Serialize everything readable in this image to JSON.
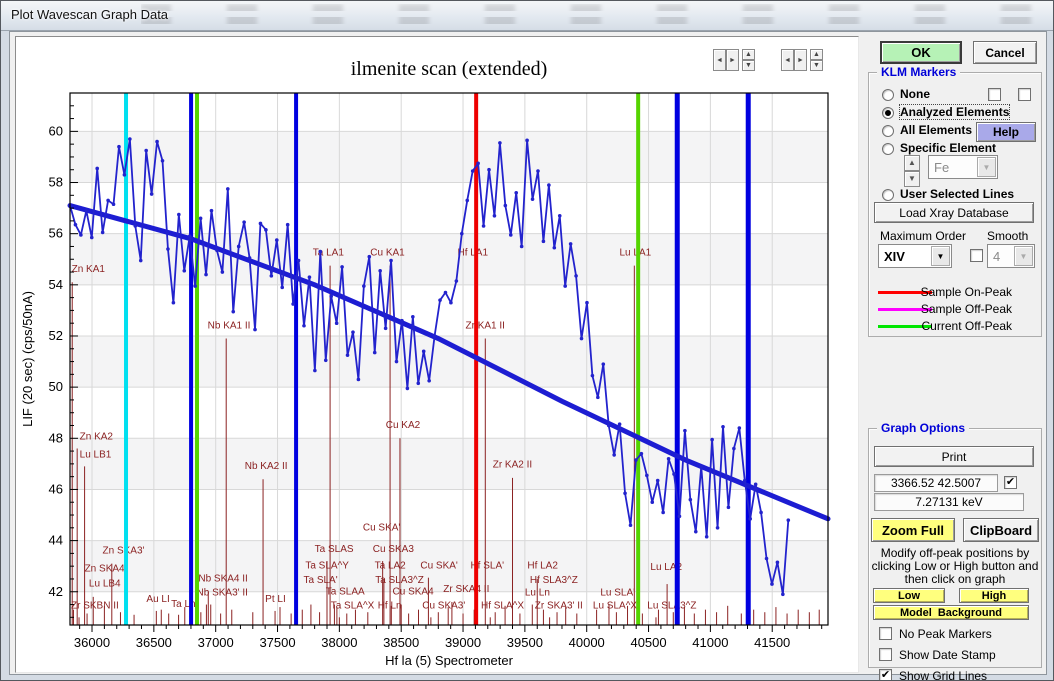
{
  "window": {
    "title": "Plot Wavescan Graph Data"
  },
  "buttons": {
    "ok": "OK",
    "cancel": "Cancel"
  },
  "klm": {
    "title": "KLM Markers",
    "radios": [
      "None",
      "Analyzed Elements",
      "All Elements",
      "Specific Element"
    ],
    "selected": "Analyzed Elements",
    "help": "Help",
    "element_value": "Fe",
    "user_selected": "User Selected Lines",
    "load_button": "Load Xray Database",
    "max_order_label": "Maximum Order",
    "max_order_value": "XIV",
    "smooth_label": "Smooth",
    "smooth_value": "4",
    "legend": [
      {
        "label": "Sample On-Peak",
        "color": "#ff0000"
      },
      {
        "label": "Sample Off-Peak",
        "color": "#ff00ff"
      },
      {
        "label": "Current Off-Peak",
        "color": "#00e600"
      }
    ]
  },
  "graph_options": {
    "title": "Graph Options",
    "print": "Print",
    "coord": "3366.52  42.5007",
    "coord_checked": true,
    "kev": "7.27131 keV",
    "zoom_full": "Zoom Full",
    "clipboard": "ClipBoard",
    "note_lines": [
      "Modify off-peak positions by",
      "clicking Low or High button and",
      "then click on graph"
    ],
    "low": "Low",
    "high": "High",
    "model_background": "Model  Background",
    "checkboxes": [
      {
        "label": "No Peak Markers",
        "checked": false
      },
      {
        "label": "Show Date Stamp",
        "checked": false
      },
      {
        "label": "Show Grid Lines",
        "checked": true
      }
    ]
  },
  "chart_data": {
    "type": "line",
    "title": "ilmenite scan (extended)",
    "xlabel": "Hf la (5) Spectrometer",
    "ylabel": "LIF (20 sec) (cps/50nA)",
    "x_range": [
      35822,
      41951
    ],
    "y_range": [
      40.7,
      61.5
    ],
    "x_ticks": [
      36000,
      36500,
      37000,
      37500,
      38000,
      38500,
      39000,
      39500,
      40000,
      40500,
      41000,
      41500
    ],
    "x_minor_step": 100,
    "y_ticks": [
      42,
      44,
      46,
      48,
      50,
      52,
      54,
      56,
      58,
      60
    ],
    "y_minor_step": 0.5,
    "grid": true,
    "colors": {
      "data": "#2323cd",
      "trend": "#1d1dd2",
      "klm": "#8b2222",
      "grid": "#d8d8d8",
      "band": "#f4f4f5"
    },
    "marker_lines": [
      {
        "x": 36275,
        "color": "#00e0f0",
        "w": 4
      },
      {
        "x": 36801,
        "color": "#0000e0",
        "w": 4
      },
      {
        "x": 36849,
        "color": "#55d400",
        "w": 4
      },
      {
        "x": 37650,
        "color": "#0000e0",
        "w": 4
      },
      {
        "x": 39106,
        "color": "#ee0000",
        "w": 4
      },
      {
        "x": 40416,
        "color": "#55d400",
        "w": 4
      },
      {
        "x": 40732,
        "color": "#0000e0",
        "w": 5
      },
      {
        "x": 41306,
        "color": "#0000e0",
        "w": 5
      }
    ],
    "series": [
      {
        "name": "wavescan-data",
        "points": [
          [
            35822,
            57.1
          ],
          [
            35866,
            56.35
          ],
          [
            35910,
            55.95
          ],
          [
            35954,
            56.9
          ],
          [
            35998,
            55.85
          ],
          [
            36042,
            58.55
          ],
          [
            36086,
            56.05
          ],
          [
            36130,
            57.3
          ],
          [
            36174,
            57.15
          ],
          [
            36218,
            59.4
          ],
          [
            36262,
            58.3
          ],
          [
            36306,
            59.7
          ],
          [
            36350,
            56.3
          ],
          [
            36394,
            54.95
          ],
          [
            36438,
            59.25
          ],
          [
            36482,
            57.55
          ],
          [
            36526,
            59.6
          ],
          [
            36570,
            58.85
          ],
          [
            36614,
            55.4
          ],
          [
            36658,
            53.3
          ],
          [
            36702,
            56.75
          ],
          [
            36746,
            54.55
          ],
          [
            36790,
            55.9
          ],
          [
            36834,
            53.95
          ],
          [
            36878,
            56.6
          ],
          [
            36922,
            54.4
          ],
          [
            36966,
            56.9
          ],
          [
            37010,
            55.35
          ],
          [
            37054,
            54.5
          ],
          [
            37098,
            57.75
          ],
          [
            37142,
            52.95
          ],
          [
            37186,
            55.5
          ],
          [
            37230,
            56.45
          ],
          [
            37274,
            55.05
          ],
          [
            37318,
            52.25
          ],
          [
            37362,
            56.4
          ],
          [
            37406,
            56.15
          ],
          [
            37450,
            54.35
          ],
          [
            37494,
            55.75
          ],
          [
            37538,
            53.9
          ],
          [
            37582,
            56.35
          ],
          [
            37626,
            53.25
          ],
          [
            37670,
            54.95
          ],
          [
            37714,
            52.4
          ],
          [
            37758,
            54.3
          ],
          [
            37802,
            50.65
          ],
          [
            37846,
            55.3
          ],
          [
            37890,
            51.05
          ],
          [
            37934,
            53.55
          ],
          [
            37978,
            52.5
          ],
          [
            38022,
            54.7
          ],
          [
            38066,
            51.25
          ],
          [
            38110,
            52.15
          ],
          [
            38154,
            50.3
          ],
          [
            38198,
            53.95
          ],
          [
            38242,
            55.1
          ],
          [
            38286,
            51.35
          ],
          [
            38330,
            54.55
          ],
          [
            38374,
            52.3
          ],
          [
            38418,
            54.95
          ],
          [
            38462,
            51.0
          ],
          [
            38506,
            52.6
          ],
          [
            38550,
            49.95
          ],
          [
            38594,
            52.75
          ],
          [
            38638,
            50.15
          ],
          [
            38682,
            51.4
          ],
          [
            38726,
            50.25
          ],
          [
            38770,
            52.0
          ],
          [
            38814,
            53.4
          ],
          [
            38858,
            53.7
          ],
          [
            38902,
            53.3
          ],
          [
            38946,
            54.15
          ],
          [
            38990,
            56.0
          ],
          [
            39034,
            57.3
          ],
          [
            39078,
            58.45
          ],
          [
            39122,
            58.75
          ],
          [
            39166,
            56.3
          ],
          [
            39210,
            58.5
          ],
          [
            39254,
            56.7
          ],
          [
            39298,
            59.55
          ],
          [
            39342,
            57.1
          ],
          [
            39386,
            55.95
          ],
          [
            39430,
            57.6
          ],
          [
            39474,
            55.5
          ],
          [
            39518,
            59.65
          ],
          [
            39562,
            57.35
          ],
          [
            39606,
            58.45
          ],
          [
            39650,
            55.7
          ],
          [
            39694,
            57.9
          ],
          [
            39738,
            55.45
          ],
          [
            39782,
            56.7
          ],
          [
            39826,
            53.95
          ],
          [
            39870,
            55.6
          ],
          [
            39914,
            54.35
          ],
          [
            39958,
            51.9
          ],
          [
            40002,
            53.3
          ],
          [
            40046,
            50.45
          ],
          [
            40090,
            49.6
          ],
          [
            40134,
            50.9
          ],
          [
            40178,
            48.5
          ],
          [
            40222,
            47.35
          ],
          [
            40266,
            48.55
          ],
          [
            40310,
            45.85
          ],
          [
            40354,
            44.6
          ],
          [
            40398,
            47.15
          ],
          [
            40442,
            47.4
          ],
          [
            40486,
            46.55
          ],
          [
            40530,
            45.5
          ],
          [
            40574,
            46.35
          ],
          [
            40618,
            45.1
          ],
          [
            40662,
            47.2
          ],
          [
            40706,
            46.6
          ],
          [
            40750,
            44.95
          ],
          [
            40794,
            48.3
          ],
          [
            40838,
            45.6
          ],
          [
            40882,
            44.35
          ],
          [
            40926,
            46.9
          ],
          [
            40970,
            44.15
          ],
          [
            41014,
            47.95
          ],
          [
            41058,
            44.5
          ],
          [
            41102,
            48.45
          ],
          [
            41146,
            45.3
          ],
          [
            41190,
            47.6
          ],
          [
            41234,
            48.4
          ],
          [
            41278,
            46.35
          ],
          [
            41322,
            44.85
          ],
          [
            41366,
            46.2
          ],
          [
            41410,
            45.1
          ],
          [
            41454,
            43.3
          ],
          [
            41498,
            42.3
          ],
          [
            41542,
            43.15
          ],
          [
            41586,
            41.9
          ],
          [
            41630,
            44.8
          ]
        ]
      },
      {
        "name": "background-fit",
        "points": [
          [
            35822,
            57.1
          ],
          [
            36800,
            55.8
          ],
          [
            37800,
            54.0
          ],
          [
            38800,
            51.9
          ],
          [
            39800,
            49.45
          ],
          [
            40800,
            47.15
          ],
          [
            41951,
            44.85
          ]
        ]
      }
    ],
    "klm_markers": [
      {
        "t": "Zn KA1",
        "x": 35835,
        "y": 54.5,
        "sx": 35840,
        "st": 54.1
      },
      {
        "t": "Zn KA2",
        "x": 35900,
        "y": 47.95,
        "sx": 35880,
        "st": 47.6
      },
      {
        "t": "Lu LB1",
        "x": 35900,
        "y": 47.25,
        "sx": 35940,
        "st": 46.9
      },
      {
        "t": "Zn SKA3'",
        "x": 36085,
        "y": 43.5,
        "sx": 36160,
        "st": 43.1
      },
      {
        "t": "Zn SKA4",
        "x": 35940,
        "y": 42.8
      },
      {
        "t": "Lu LB4",
        "x": 35975,
        "y": 42.2,
        "sx": 36010,
        "st": 41.8
      },
      {
        "t": "Zr SKBN II",
        "x": 35830,
        "y": 41.35,
        "sx": 35895,
        "st": 41.0
      },
      {
        "t": "Au LI",
        "x": 36440,
        "y": 41.6,
        "sx": 36520,
        "st": 41.25
      },
      {
        "t": "Ta Ln",
        "x": 36640,
        "y": 41.4,
        "sx": 36700,
        "st": 41.1
      },
      {
        "t": "Nb SKA4 II",
        "x": 36860,
        "y": 42.4,
        "sx": 36940,
        "st": 42.0
      },
      {
        "t": "Nb SKA3' II",
        "x": 36845,
        "y": 41.85,
        "sx": 36925,
        "st": 41.5
      },
      {
        "t": "Nb KA1 II",
        "x": 36935,
        "y": 52.3,
        "sx": 37085,
        "st": 51.9
      },
      {
        "t": "Nb KA2 II",
        "x": 37235,
        "y": 46.8,
        "sx": 37383,
        "st": 46.4
      },
      {
        "t": "Pt LI",
        "x": 37400,
        "y": 41.6,
        "sx": 37480,
        "st": 41.25
      },
      {
        "t": "Ta LA1",
        "x": 37785,
        "y": 55.15,
        "sx": 37925,
        "st": 54.75
      },
      {
        "t": "Ta SLAS",
        "x": 37800,
        "y": 43.55,
        "sx": 37900,
        "st": 43.2
      },
      {
        "t": "Ta SLA^Y",
        "x": 37725,
        "y": 42.9
      },
      {
        "t": "Ta SLA'",
        "x": 37710,
        "y": 42.35
      },
      {
        "t": "Ta SLAA",
        "x": 37890,
        "y": 41.9,
        "sx": 37960,
        "st": 41.5
      },
      {
        "t": "Ta SLA^X",
        "x": 37930,
        "y": 41.35,
        "sx": 38000,
        "st": 41.0
      },
      {
        "t": "Cu KA1",
        "x": 38250,
        "y": 55.15,
        "sx": 38410,
        "st": 54.75
      },
      {
        "t": "Cu KA2",
        "x": 38375,
        "y": 48.4,
        "sx": 38490,
        "st": 48.0
      },
      {
        "t": "Cu SKA3",
        "x": 38270,
        "y": 43.55,
        "sx": 38350,
        "st": 43.2
      },
      {
        "t": "Ta LA2",
        "x": 38285,
        "y": 42.9,
        "sx": 38360,
        "st": 42.5
      },
      {
        "t": "Ta SLA3^Z",
        "x": 38290,
        "y": 42.35
      },
      {
        "t": "Cu SKA'",
        "x": 38190,
        "y": 44.4
      },
      {
        "t": "Cu SKA'",
        "x": 38655,
        "y": 42.9,
        "sx": 38720,
        "st": 42.55
      },
      {
        "t": "Cu SKA4",
        "x": 38430,
        "y": 41.9,
        "sx": 38500,
        "st": 41.5
      },
      {
        "t": "Cu SKA3'",
        "x": 38670,
        "y": 41.35,
        "sx": 38740,
        "st": 41.0
      },
      {
        "t": "Hf Ln",
        "x": 38310,
        "y": 41.35
      },
      {
        "t": "Hf LA1",
        "x": 38955,
        "y": 55.15
      },
      {
        "t": "Zr KA1 II",
        "x": 39020,
        "y": 52.3,
        "sx": 39180,
        "st": 51.9
      },
      {
        "t": "Zr KA2 II",
        "x": 39240,
        "y": 46.85,
        "sx": 39400,
        "st": 46.45
      },
      {
        "t": "Zr SKA4 II",
        "x": 38840,
        "y": 42.0,
        "sx": 38910,
        "st": 41.6
      },
      {
        "t": "Hf SLA'",
        "x": 39060,
        "y": 42.9
      },
      {
        "t": "Hf SLA^X",
        "x": 39145,
        "y": 41.35,
        "sx": 39220,
        "st": 41.0
      },
      {
        "t": "Hf LA2",
        "x": 39520,
        "y": 42.9,
        "sx": 39600,
        "st": 42.5
      },
      {
        "t": "Hf SLA3^Z",
        "x": 39540,
        "y": 42.35
      },
      {
        "t": "Lu Ln",
        "x": 39500,
        "y": 41.85,
        "sx": 39560,
        "st": 41.5
      },
      {
        "t": "Zr SKA3' II",
        "x": 39580,
        "y": 41.35,
        "sx": 39700,
        "st": 41.0
      },
      {
        "t": "Lu LA1",
        "x": 40265,
        "y": 55.15,
        "sx": 40385,
        "st": 54.75
      },
      {
        "t": "Lu SLA'",
        "x": 40110,
        "y": 41.85,
        "sx": 40180,
        "st": 41.5
      },
      {
        "t": "Lu SLA^X",
        "x": 40050,
        "y": 41.35
      },
      {
        "t": "Lu LA2",
        "x": 40515,
        "y": 42.85,
        "sx": 40650,
        "st": 42.3
      },
      {
        "t": "Lu SLA3^Z",
        "x": 40490,
        "y": 41.35,
        "sx": 40560,
        "st": 41.0
      }
    ],
    "base_ticks": [
      [
        35850,
        41.3
      ],
      [
        35960,
        41.15
      ],
      [
        36100,
        41.45
      ],
      [
        36230,
        41.2
      ],
      [
        36340,
        41.1
      ],
      [
        36560,
        41.3
      ],
      [
        36620,
        41.15
      ],
      [
        36750,
        41.4
      ],
      [
        36880,
        41.2
      ],
      [
        36960,
        41.5
      ],
      [
        37040,
        41.15
      ],
      [
        37130,
        41.3
      ],
      [
        37300,
        41.2
      ],
      [
        37520,
        41.4
      ],
      [
        37610,
        41.15
      ],
      [
        37700,
        41.3
      ],
      [
        37770,
        41.5
      ],
      [
        37840,
        41.2
      ],
      [
        37980,
        41.4
      ],
      [
        38060,
        41.15
      ],
      [
        38130,
        41.3
      ],
      [
        38230,
        41.2
      ],
      [
        38420,
        41.45
      ],
      [
        38560,
        41.15
      ],
      [
        38640,
        41.3
      ],
      [
        38800,
        41.2
      ],
      [
        38880,
        41.4
      ],
      [
        39000,
        41.15
      ],
      [
        39090,
        41.3
      ],
      [
        39260,
        41.2
      ],
      [
        39340,
        41.45
      ],
      [
        39460,
        41.15
      ],
      [
        39650,
        41.3
      ],
      [
        39760,
        41.2
      ],
      [
        39830,
        41.4
      ],
      [
        39920,
        41.15
      ],
      [
        40080,
        41.3
      ],
      [
        40240,
        41.2
      ],
      [
        40330,
        41.45
      ],
      [
        40450,
        41.15
      ],
      [
        40580,
        41.3
      ],
      [
        40700,
        41.2
      ],
      [
        40790,
        41.4
      ],
      [
        40870,
        41.15
      ],
      [
        40960,
        41.3
      ],
      [
        41050,
        41.2
      ],
      [
        41140,
        41.45
      ],
      [
        41250,
        41.15
      ],
      [
        41350,
        41.3
      ],
      [
        41440,
        41.2
      ],
      [
        41530,
        41.4
      ],
      [
        41620,
        41.15
      ],
      [
        41710,
        41.3
      ],
      [
        41800,
        41.2
      ],
      [
        41880,
        41.3
      ]
    ]
  }
}
